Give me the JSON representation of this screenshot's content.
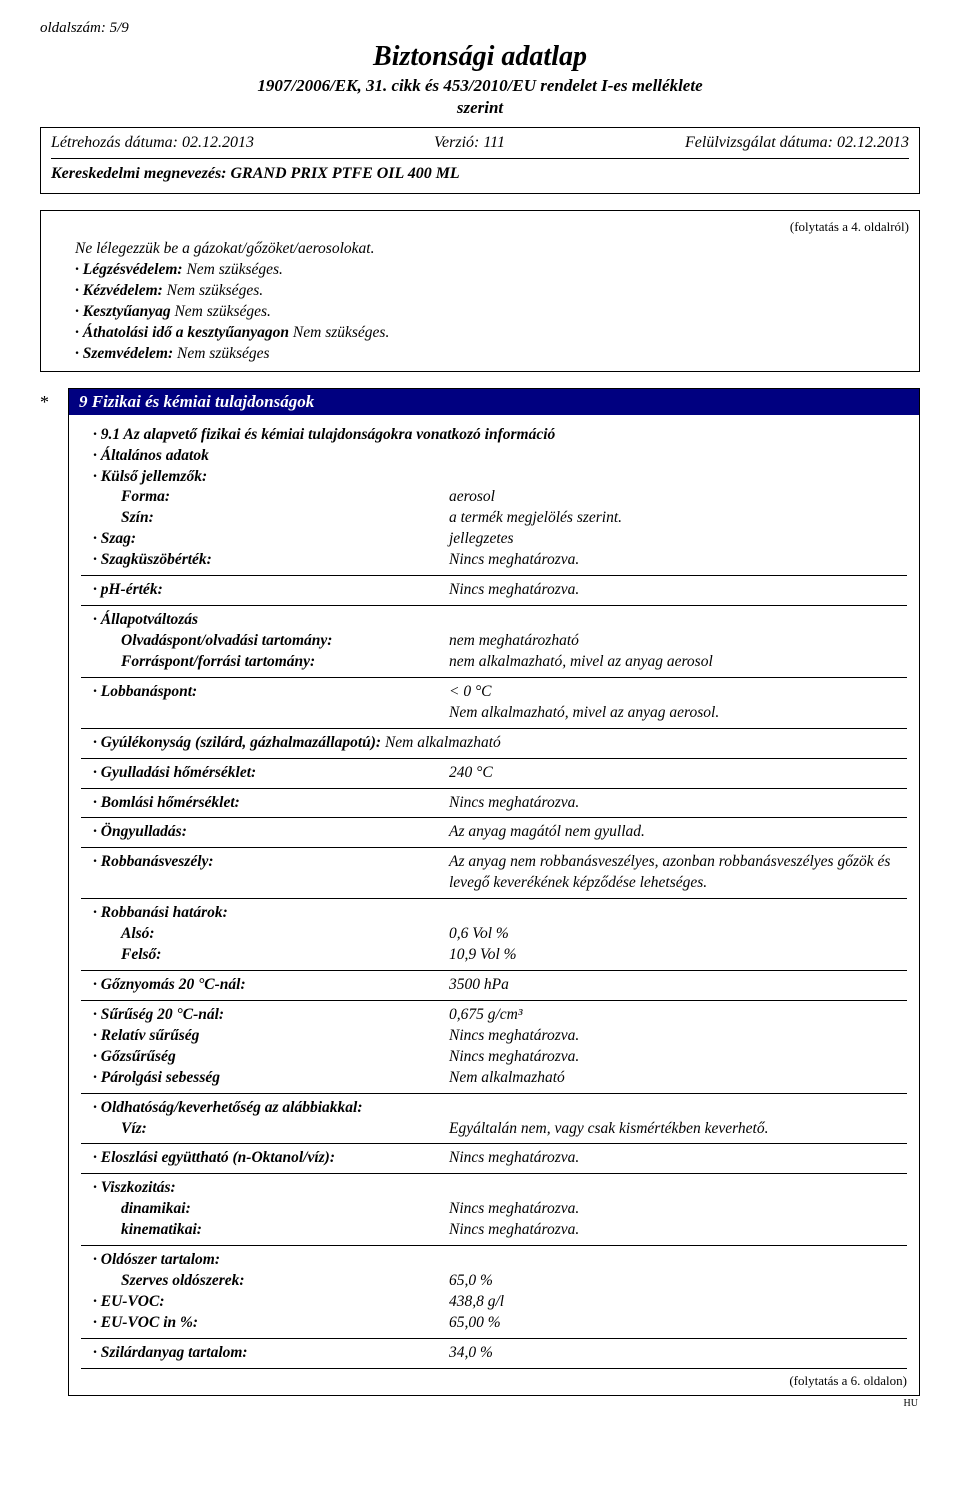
{
  "page_number": "oldalszám: 5/9",
  "title": "Biztonsági adatlap",
  "subtitle_line1": "1907/2006/EK, 31. cikk és 453/2010/EU rendelet I-es melléklete",
  "subtitle_line2": "szerint",
  "header": {
    "created_label": "Létrehozás dátuma: 02.12.2013",
    "version_label": "Verzió: 111",
    "revised_label": "Felülvizsgálat dátuma: 02.12.2013",
    "trade_label": "Kereskedelmi megnevezés: ",
    "trade_value": "GRAND PRIX PTFE OIL 400 ML"
  },
  "cont_from": "(folytatás a 4. oldalról)",
  "prelines": [
    {
      "label": "",
      "text": "Ne lélegezzük be a gázokat/gőzöket/aerosolokat."
    },
    {
      "label": "· Légzésvédelem: ",
      "text": "Nem szükséges."
    },
    {
      "label": "· Kézvédelem: ",
      "text": "Nem szükséges."
    },
    {
      "label": "· Kesztyűanyag ",
      "text": "Nem szükséges."
    },
    {
      "label": "· Áthatolási idő a kesztyűanyagon ",
      "text": "Nem szükséges."
    },
    {
      "label": "· Szemvédelem: ",
      "text": "Nem szükséges"
    }
  ],
  "star": "*",
  "section_title": "9 Fizikai és kémiai tulajdonságok",
  "intro": [
    {
      "label": "· 9.1 Az alapvető fizikai és kémiai tulajdonságokra vonatkozó információ",
      "key_only": true
    },
    {
      "label": "· Általános adatok",
      "key_only": true
    },
    {
      "label": "· Külső jellemzők:",
      "key_only": true
    }
  ],
  "rows1": [
    {
      "key": "Forma:",
      "sub": true,
      "bold": true,
      "val": "aerosol"
    },
    {
      "key": "Szín:",
      "sub": true,
      "bold": true,
      "val": "a termék megjelölés szerint."
    },
    {
      "key": "· Szag:",
      "bold": true,
      "val": "jellegzetes"
    },
    {
      "key": "· Szagküszöbérték:",
      "bold": true,
      "val": "Nincs meghatározva."
    }
  ],
  "rows_ph": [
    {
      "key": "· pH-érték:",
      "bold": true,
      "val": "Nincs meghatározva."
    }
  ],
  "rows_state": [
    {
      "key": "· Állapotváltozás",
      "bold": true,
      "key_only": true
    },
    {
      "key": "Olvadáspont/olvadási tartomány:",
      "sub": true,
      "bold": true,
      "val": "nem meghatározható"
    },
    {
      "key": "Forráspont/forrási tartomány:",
      "sub": true,
      "bold": true,
      "val": "nem alkalmazható, mivel az anyag aerosol"
    }
  ],
  "rows_flash": [
    {
      "key": "· Lobbanáspont:",
      "bold": true,
      "val": "< 0 °C"
    },
    {
      "key": "",
      "val": "Nem alkalmazható, mivel az anyag aerosol."
    }
  ],
  "rows_flam": [
    {
      "key": "· Gyúlékonyság (szilárd, gázhalmazállapotú): ",
      "bold": true,
      "val_inline": "Nem alkalmazható"
    }
  ],
  "rows_ign": [
    {
      "key": "· Gyulladási hőmérséklet:",
      "bold": true,
      "val": "240 °C"
    }
  ],
  "rows_decomp": [
    {
      "key": "· Bomlási hőmérséklet:",
      "bold": true,
      "val": "Nincs meghatározva."
    }
  ],
  "rows_self": [
    {
      "key": "· Öngyulladás:",
      "bold": true,
      "val": "Az anyag magától nem gyullad."
    }
  ],
  "rows_expl": [
    {
      "key": "· Robbanásveszély:",
      "bold": true,
      "val": "Az anyag nem robbanásveszélyes, azonban robbanásveszélyes gőzök és levegő keverékének képződése lehetséges."
    }
  ],
  "rows_explim": [
    {
      "key": "· Robbanási határok:",
      "bold": true,
      "key_only": true
    },
    {
      "key": "Alsó:",
      "sub": true,
      "bold": true,
      "val": "0,6 Vol %"
    },
    {
      "key": "Felső:",
      "sub": true,
      "bold": true,
      "val": "10,9 Vol %"
    }
  ],
  "rows_vap": [
    {
      "key": "· Gőznyomás 20 °C-nál:",
      "bold": true,
      "val": "3500 hPa"
    }
  ],
  "rows_dens": [
    {
      "key": "· Sűrűség 20 °C-nál:",
      "bold": true,
      "val": "0,675 g/cm³"
    },
    {
      "key": "· Relatív sűrűség",
      "bold": true,
      "val": "Nincs meghatározva."
    },
    {
      "key": "· Gőzsűrűség",
      "bold": true,
      "val": "Nincs meghatározva."
    },
    {
      "key": "· Párolgási sebesség",
      "bold": true,
      "val": "Nem alkalmazható"
    }
  ],
  "rows_sol": [
    {
      "key": "· Oldhatóság/keverhetőség az alábbiakkal:",
      "bold": true,
      "key_only": true
    },
    {
      "key": "Víz:",
      "sub": true,
      "bold": true,
      "val": "Egyáltalán nem, vagy csak kismértékben keverhető."
    }
  ],
  "rows_part": [
    {
      "key": "· Eloszlási együttható (n-Oktanol/víz):",
      "bold": true,
      "val": "Nincs meghatározva."
    }
  ],
  "rows_visc": [
    {
      "key": "· Viszkozitás:",
      "bold": true,
      "key_only": true
    },
    {
      "key": "dinamikai:",
      "sub": true,
      "bold": true,
      "val": "Nincs meghatározva."
    },
    {
      "key": "kinematikai:",
      "sub": true,
      "bold": true,
      "val": "Nincs meghatározva."
    }
  ],
  "rows_solv": [
    {
      "key": "· Oldószer tartalom:",
      "bold": true,
      "key_only": true
    },
    {
      "key": "Szerves oldószerek:",
      "sub": true,
      "bold": true,
      "val": "65,0 %"
    },
    {
      "key": "· EU-VOC:",
      "bold": true,
      "val": "438,8 g/l"
    },
    {
      "key": "· EU-VOC in %:",
      "bold": true,
      "val": " 65,00 %"
    }
  ],
  "rows_solid": [
    {
      "key": "· Szilárdanyag tartalom:",
      "bold": true,
      "val": "34,0 %"
    }
  ],
  "cont_to": "(folytatás a 6. oldalon)",
  "hu": "HU"
}
